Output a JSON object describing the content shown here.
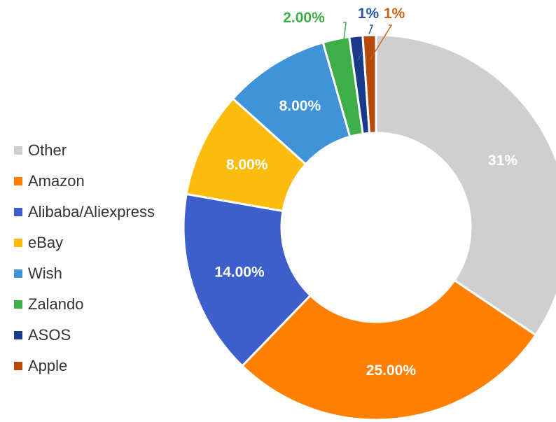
{
  "chart_data": {
    "type": "pie",
    "donut": true,
    "title": "",
    "legend_position": "left",
    "slices": [
      {
        "name": "Other",
        "value": 31,
        "label": "31%",
        "color": "#cfcfcf",
        "label_color": "#ffffff"
      },
      {
        "name": "Amazon",
        "value": 25,
        "label": "25.00%",
        "color": "#ff7f00",
        "label_color": "#ffffff"
      },
      {
        "name": "Alibaba/Aliexpress",
        "value": 14,
        "label": "14.00%",
        "color": "#3e5fcb",
        "label_color": "#ffffff"
      },
      {
        "name": "eBay",
        "value": 8,
        "label": "8.00%",
        "color": "#fcbc0e",
        "label_color": "#ffffff"
      },
      {
        "name": "Wish",
        "value": 8,
        "label": "8.00%",
        "color": "#3f93d6",
        "label_color": "#ffffff"
      },
      {
        "name": "Zalando",
        "value": 2,
        "label": "2.00%",
        "color": "#3fae49",
        "label_color": "#3fae49"
      },
      {
        "name": "ASOS",
        "value": 1,
        "label": "1%",
        "color": "#193a88",
        "label_color": "#2a55a6"
      },
      {
        "name": "Apple",
        "value": 1,
        "label": "1%",
        "color": "#b54a0c",
        "label_color": "#c8651e"
      }
    ]
  }
}
